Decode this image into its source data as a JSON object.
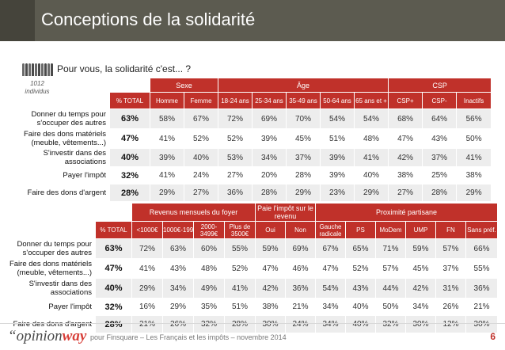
{
  "title": "Conceptions de la solidarité",
  "question": "Pour vous, la solidarité c'est... ?",
  "sample": "1012 individus",
  "table1": {
    "groups": [
      "Sexe",
      "Âge",
      "CSP"
    ],
    "columns": [
      "% TOTAL",
      "Homme",
      "Femme",
      "18-24 ans",
      "25-34 ans",
      "35-49 ans",
      "50-64 ans",
      "65 ans et +",
      "CSP+",
      "CSP-",
      "Inactifs"
    ],
    "rows": [
      {
        "label": "Donner du temps pour s'occuper des autres",
        "total": "63%",
        "values": [
          "58%",
          "67%",
          "72%",
          "69%",
          "70%",
          "54%",
          "54%",
          "68%",
          "64%",
          "56%"
        ]
      },
      {
        "label": "Faire des dons matériels (meuble, vêtements...)",
        "total": "47%",
        "values": [
          "41%",
          "52%",
          "52%",
          "39%",
          "45%",
          "51%",
          "48%",
          "47%",
          "43%",
          "50%"
        ]
      },
      {
        "label": "S'investir dans des associations",
        "total": "40%",
        "values": [
          "39%",
          "40%",
          "53%",
          "34%",
          "37%",
          "39%",
          "41%",
          "42%",
          "37%",
          "41%"
        ]
      },
      {
        "label": "Payer l'impôt",
        "total": "32%",
        "values": [
          "41%",
          "24%",
          "27%",
          "20%",
          "28%",
          "39%",
          "40%",
          "38%",
          "25%",
          "38%"
        ]
      },
      {
        "label": "Faire des dons d'argent",
        "total": "28%",
        "values": [
          "29%",
          "27%",
          "36%",
          "28%",
          "29%",
          "23%",
          "29%",
          "27%",
          "28%",
          "29%"
        ]
      }
    ]
  },
  "table2": {
    "groups": [
      "Revenus mensuels du foyer",
      "Paie l'impôt sur le revenu",
      "Proximité partisane"
    ],
    "columns": [
      "% TOTAL",
      "<1000€",
      "1000€-1999€",
      "2000-3499€",
      "Plus de 3500€",
      "Oui",
      "Non",
      "Gauche radicale",
      "PS",
      "MoDem",
      "UMP",
      "FN",
      "Sans préf."
    ],
    "rows": [
      {
        "label": "Donner du temps pour s'occuper des autres",
        "total": "63%",
        "values": [
          "72%",
          "63%",
          "60%",
          "55%",
          "59%",
          "69%",
          "67%",
          "65%",
          "71%",
          "59%",
          "57%",
          "66%"
        ]
      },
      {
        "label": "Faire des dons matériels (meuble, vêtements...)",
        "total": "47%",
        "values": [
          "41%",
          "43%",
          "48%",
          "52%",
          "47%",
          "46%",
          "47%",
          "52%",
          "57%",
          "45%",
          "37%",
          "55%"
        ]
      },
      {
        "label": "S'investir dans des associations",
        "total": "40%",
        "values": [
          "29%",
          "34%",
          "49%",
          "41%",
          "42%",
          "36%",
          "54%",
          "43%",
          "44%",
          "42%",
          "31%",
          "36%"
        ]
      },
      {
        "label": "Payer l'impôt",
        "total": "32%",
        "values": [
          "16%",
          "29%",
          "35%",
          "51%",
          "38%",
          "21%",
          "34%",
          "40%",
          "50%",
          "34%",
          "26%",
          "21%"
        ]
      },
      {
        "label": "Faire des dons d'argent",
        "total": "28%",
        "values": [
          "21%",
          "26%",
          "32%",
          "28%",
          "30%",
          "24%",
          "34%",
          "40%",
          "32%",
          "30%",
          "12%",
          "30%"
        ]
      }
    ]
  },
  "footer": {
    "logo_quote": "“",
    "logo_opinion": "opinion",
    "logo_way": "way",
    "text": "pour Finsquare – Les Français et les impôts – novembre 2014",
    "page": "6"
  },
  "colors": {
    "accent": "#c0312a",
    "title_bar": "#5c5b50",
    "row_shade": "#ededed"
  }
}
